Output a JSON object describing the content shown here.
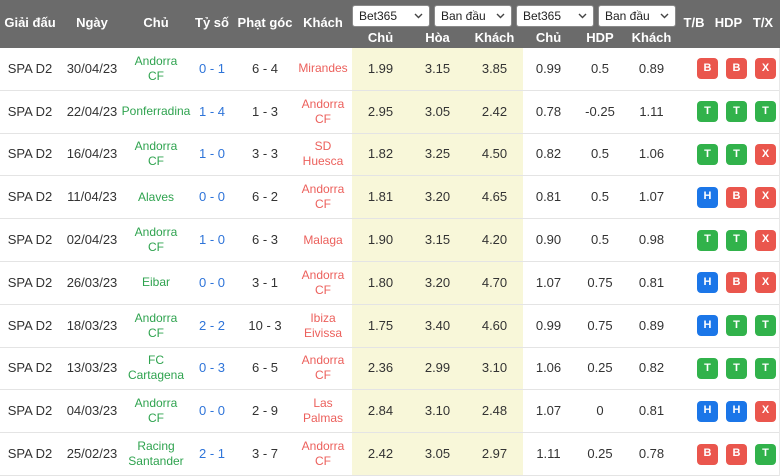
{
  "colors": {
    "header_bg": "#6b6b6b",
    "home_team": "#2fa34f",
    "away_team": "#ec605c",
    "score_link": "#2e74d9",
    "odds_highlight": "#f8f7d9",
    "badge_green": "#31b24b",
    "badge_red": "#ea564d",
    "badge_blue": "#1b76e8"
  },
  "table": {
    "header": {
      "league": "Giải đấu",
      "date": "Ngày",
      "home": "Chủ",
      "score": "Tỷ số",
      "corners": "Phạt góc",
      "away": "Khách",
      "selects": [
        {
          "value": "Bet365"
        },
        {
          "value": "Ban đầu"
        },
        {
          "value": "Bet365"
        },
        {
          "value": "Ban đầu"
        }
      ],
      "odds_sublabels": [
        "Chủ",
        "Hòa",
        "Khách"
      ],
      "hdp_sublabels": [
        "Chủ",
        "HDP",
        "Khách"
      ],
      "result_labels": [
        "T/B",
        "HDP",
        "T/X"
      ]
    },
    "rows": [
      {
        "league": "SPA D2",
        "date": "30/04/23",
        "home": "Andorra CF",
        "score": "0 - 1",
        "corners": "6 - 4",
        "away": "Mirandes",
        "odds": [
          "1.99",
          "3.15",
          "3.85"
        ],
        "hdp": [
          "0.99",
          "0.5",
          "0.89"
        ],
        "results": [
          {
            "label": "B",
            "color": "red"
          },
          {
            "label": "B",
            "color": "red"
          },
          {
            "label": "X",
            "color": "red"
          }
        ]
      },
      {
        "league": "SPA D2",
        "date": "22/04/23",
        "home": "Ponferradina",
        "score": "1 - 4",
        "corners": "1 - 3",
        "away": "Andorra CF",
        "odds": [
          "2.95",
          "3.05",
          "2.42"
        ],
        "hdp": [
          "0.78",
          "-0.25",
          "1.11"
        ],
        "results": [
          {
            "label": "T",
            "color": "green"
          },
          {
            "label": "T",
            "color": "green"
          },
          {
            "label": "T",
            "color": "green"
          }
        ]
      },
      {
        "league": "SPA D2",
        "date": "16/04/23",
        "home": "Andorra CF",
        "score": "1 - 0",
        "corners": "3 - 3",
        "away": "SD Huesca",
        "odds": [
          "1.82",
          "3.25",
          "4.50"
        ],
        "hdp": [
          "0.82",
          "0.5",
          "1.06"
        ],
        "results": [
          {
            "label": "T",
            "color": "green"
          },
          {
            "label": "T",
            "color": "green"
          },
          {
            "label": "X",
            "color": "red"
          }
        ]
      },
      {
        "league": "SPA D2",
        "date": "11/04/23",
        "home": "Alaves",
        "score": "0 - 0",
        "corners": "6 - 2",
        "away": "Andorra CF",
        "odds": [
          "1.81",
          "3.20",
          "4.65"
        ],
        "hdp": [
          "0.81",
          "0.5",
          "1.07"
        ],
        "results": [
          {
            "label": "H",
            "color": "blue"
          },
          {
            "label": "B",
            "color": "red"
          },
          {
            "label": "X",
            "color": "red"
          }
        ]
      },
      {
        "league": "SPA D2",
        "date": "02/04/23",
        "home": "Andorra CF",
        "score": "1 - 0",
        "corners": "6 - 3",
        "away": "Malaga",
        "odds": [
          "1.90",
          "3.15",
          "4.20"
        ],
        "hdp": [
          "0.90",
          "0.5",
          "0.98"
        ],
        "results": [
          {
            "label": "T",
            "color": "green"
          },
          {
            "label": "T",
            "color": "green"
          },
          {
            "label": "X",
            "color": "red"
          }
        ]
      },
      {
        "league": "SPA D2",
        "date": "26/03/23",
        "home": "Eibar",
        "score": "0 - 0",
        "corners": "3 - 1",
        "away": "Andorra CF",
        "odds": [
          "1.80",
          "3.20",
          "4.70"
        ],
        "hdp": [
          "1.07",
          "0.75",
          "0.81"
        ],
        "results": [
          {
            "label": "H",
            "color": "blue"
          },
          {
            "label": "B",
            "color": "red"
          },
          {
            "label": "X",
            "color": "red"
          }
        ]
      },
      {
        "league": "SPA D2",
        "date": "18/03/23",
        "home": "Andorra CF",
        "score": "2 - 2",
        "corners": "10 - 3",
        "away": "Ibiza Eivissa",
        "odds": [
          "1.75",
          "3.40",
          "4.60"
        ],
        "hdp": [
          "0.99",
          "0.75",
          "0.89"
        ],
        "results": [
          {
            "label": "H",
            "color": "blue"
          },
          {
            "label": "T",
            "color": "green"
          },
          {
            "label": "T",
            "color": "green"
          }
        ]
      },
      {
        "league": "SPA D2",
        "date": "13/03/23",
        "home": "FC Cartagena",
        "score": "0 - 3",
        "corners": "6 - 5",
        "away": "Andorra CF",
        "odds": [
          "2.36",
          "2.99",
          "3.10"
        ],
        "hdp": [
          "1.06",
          "0.25",
          "0.82"
        ],
        "results": [
          {
            "label": "T",
            "color": "green"
          },
          {
            "label": "T",
            "color": "green"
          },
          {
            "label": "T",
            "color": "green"
          }
        ]
      },
      {
        "league": "SPA D2",
        "date": "04/03/23",
        "home": "Andorra CF",
        "score": "0 - 0",
        "corners": "2 - 9",
        "away": "Las Palmas",
        "odds": [
          "2.84",
          "3.10",
          "2.48"
        ],
        "hdp": [
          "1.07",
          "0",
          "0.81"
        ],
        "results": [
          {
            "label": "H",
            "color": "blue"
          },
          {
            "label": "H",
            "color": "blue"
          },
          {
            "label": "X",
            "color": "red"
          }
        ]
      },
      {
        "league": "SPA D2",
        "date": "25/02/23",
        "home": "Racing Santander",
        "score": "2 - 1",
        "corners": "3 - 7",
        "away": "Andorra CF",
        "odds": [
          "2.42",
          "3.05",
          "2.97"
        ],
        "hdp": [
          "1.11",
          "0.25",
          "0.78"
        ],
        "results": [
          {
            "label": "B",
            "color": "red"
          },
          {
            "label": "B",
            "color": "red"
          },
          {
            "label": "T",
            "color": "green"
          }
        ]
      }
    ]
  }
}
